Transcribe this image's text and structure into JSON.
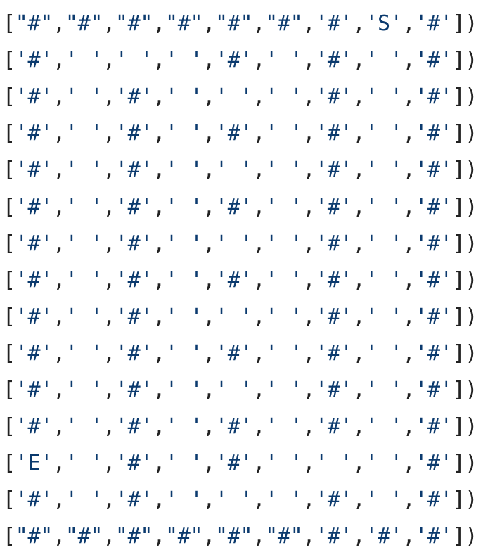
{
  "lines": [
    {
      "tokens": [
        "[",
        "\"#\"",
        ",",
        "\"#\"",
        ",",
        "\"#\"",
        ",",
        "\"#\"",
        ",",
        "\"#\"",
        ",",
        "\"#\"",
        ",",
        "'#'",
        ",",
        "'S'",
        ",",
        "'#'",
        "]",
        ")"
      ]
    },
    {
      "tokens": [
        "[",
        "'#'",
        ",",
        "' '",
        ",",
        "' '",
        ",",
        "' '",
        ",",
        "'#'",
        ",",
        "' '",
        ",",
        "'#'",
        ",",
        "' '",
        ",",
        "'#'",
        "]",
        ")"
      ]
    },
    {
      "tokens": [
        "[",
        "'#'",
        ",",
        "' '",
        ",",
        "'#'",
        ",",
        "' '",
        ",",
        "' '",
        ",",
        "' '",
        ",",
        "'#'",
        ",",
        "' '",
        ",",
        "'#'",
        "]",
        ")"
      ]
    },
    {
      "tokens": [
        "[",
        "'#'",
        ",",
        "' '",
        ",",
        "'#'",
        ",",
        "' '",
        ",",
        "'#'",
        ",",
        "' '",
        ",",
        "'#'",
        ",",
        "' '",
        ",",
        "'#'",
        "]",
        ")"
      ]
    },
    {
      "tokens": [
        "[",
        "'#'",
        ",",
        "' '",
        ",",
        "'#'",
        ",",
        "' '",
        ",",
        "' '",
        ",",
        "' '",
        ",",
        "'#'",
        ",",
        "' '",
        ",",
        "'#'",
        "]",
        ")"
      ]
    },
    {
      "tokens": [
        "[",
        "'#'",
        ",",
        "' '",
        ",",
        "'#'",
        ",",
        "' '",
        ",",
        "'#'",
        ",",
        "' '",
        ",",
        "'#'",
        ",",
        "' '",
        ",",
        "'#'",
        "]",
        ")"
      ]
    },
    {
      "tokens": [
        "[",
        "'#'",
        ",",
        "' '",
        ",",
        "'#'",
        ",",
        "' '",
        ",",
        "' '",
        ",",
        "' '",
        ",",
        "'#'",
        ",",
        "' '",
        ",",
        "'#'",
        "]",
        ")"
      ]
    },
    {
      "tokens": [
        "[",
        "'#'",
        ",",
        "' '",
        ",",
        "'#'",
        ",",
        "' '",
        ",",
        "'#'",
        ",",
        "' '",
        ",",
        "'#'",
        ",",
        "' '",
        ",",
        "'#'",
        "]",
        ")"
      ]
    },
    {
      "tokens": [
        "[",
        "'#'",
        ",",
        "' '",
        ",",
        "'#'",
        ",",
        "' '",
        ",",
        "' '",
        ",",
        "' '",
        ",",
        "'#'",
        ",",
        "' '",
        ",",
        "'#'",
        "]",
        ")"
      ]
    },
    {
      "tokens": [
        "[",
        "'#'",
        ",",
        "' '",
        ",",
        "'#'",
        ",",
        "' '",
        ",",
        "'#'",
        ",",
        "' '",
        ",",
        "'#'",
        ",",
        "' '",
        ",",
        "'#'",
        "]",
        ")"
      ]
    },
    {
      "tokens": [
        "[",
        "'#'",
        ",",
        "' '",
        ",",
        "'#'",
        ",",
        "' '",
        ",",
        "' '",
        ",",
        "' '",
        ",",
        "'#'",
        ",",
        "' '",
        ",",
        "'#'",
        "]",
        ")"
      ]
    },
    {
      "tokens": [
        "[",
        "'#'",
        ",",
        "' '",
        ",",
        "'#'",
        ",",
        "' '",
        ",",
        "'#'",
        ",",
        "' '",
        ",",
        "'#'",
        ",",
        "' '",
        ",",
        "'#'",
        "]",
        ")"
      ]
    },
    {
      "tokens": [
        "[",
        "'E'",
        ",",
        "' '",
        ",",
        "'#'",
        ",",
        "' '",
        ",",
        "'#'",
        ",",
        "' '",
        ",",
        "' '",
        ",",
        "' '",
        ",",
        "'#'",
        "]",
        ")"
      ]
    },
    {
      "tokens": [
        "[",
        "'#'",
        ",",
        "' '",
        ",",
        "'#'",
        ",",
        "' '",
        ",",
        "' '",
        ",",
        "' '",
        ",",
        "'#'",
        ",",
        "' '",
        ",",
        "'#'",
        "]",
        ")"
      ]
    },
    {
      "tokens": [
        "[",
        "\"#\"",
        ",",
        "\"#\"",
        ",",
        "\"#\"",
        ",",
        "\"#\"",
        ",",
        "\"#\"",
        ",",
        "\"#\"",
        ",",
        "'#'",
        ",",
        "'#'",
        ",",
        "'#'",
        "]",
        ")"
      ]
    }
  ],
  "colors": {
    "background": "#ffffff",
    "string": "#0b3a6e",
    "punctuation": "#222222"
  }
}
